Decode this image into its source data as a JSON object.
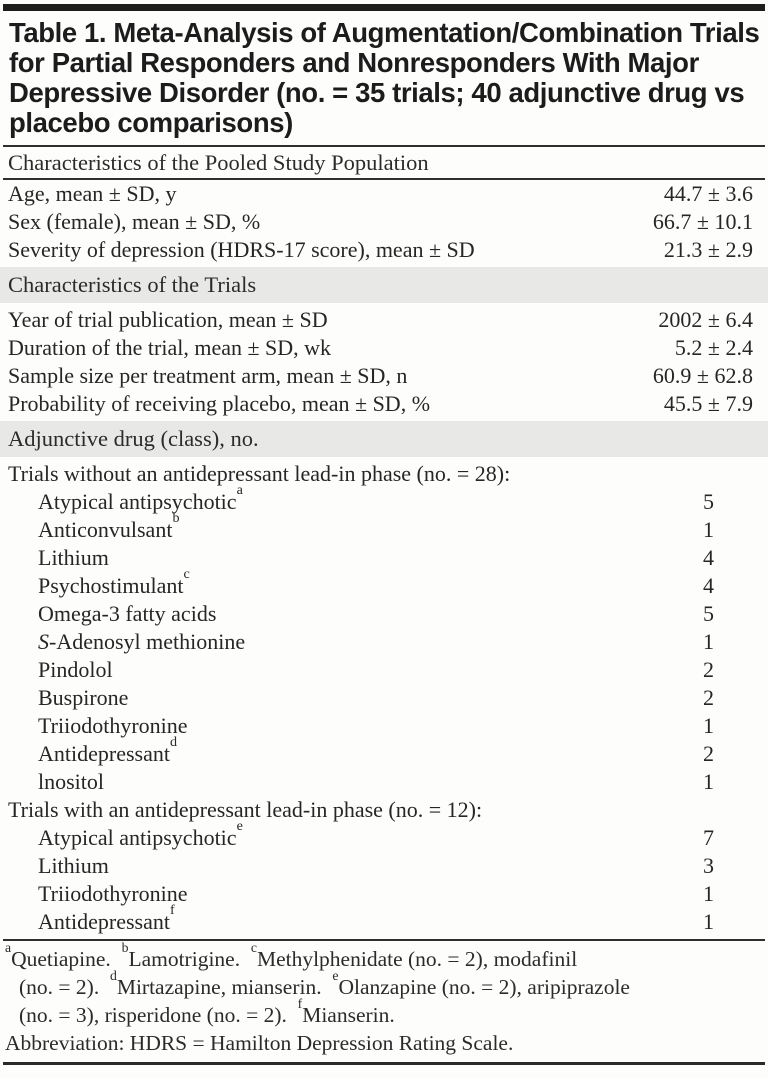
{
  "title": {
    "lines": [
      "Table 1. Meta-Analysis of Augmentation/Combination Trials",
      "for Partial Responders and Nonresponders With Major",
      "Depressive Disorder (no. = 35 trials; 40 adjunctive drug vs",
      "placebo comparisons)"
    ]
  },
  "colors": {
    "top_bar": "#1d1d1d",
    "section_band": "#e8e8e7",
    "rule": "#2f2f2f",
    "text": "#262626"
  },
  "table": {
    "sections": [
      {
        "header": "Characteristics of the Pooled Study Population",
        "shaded": false,
        "value_style": "stat",
        "rows": [
          {
            "label": "Age, mean ± SD, y",
            "value": "44.7 ± 3.6",
            "indent": 0
          },
          {
            "label": "Sex (female), mean ± SD, %",
            "value": "66.7 ± 10.1",
            "indent": 0
          },
          {
            "label": "Severity of depression (HDRS-17 score), mean ± SD",
            "value": "21.3 ± 2.9",
            "indent": 0
          }
        ]
      },
      {
        "header": "Characteristics of the Trials",
        "shaded": true,
        "value_style": "stat",
        "rows": [
          {
            "label": "Year of trial publication, mean ± SD",
            "value": "2002 ± 6.4",
            "indent": 0
          },
          {
            "label": "Duration of the trial, mean ± SD, wk",
            "value": "5.2 ± 2.4",
            "indent": 0
          },
          {
            "label": "Sample size per treatment arm, mean ± SD, n",
            "value": "60.9 ± 62.8",
            "indent": 0
          },
          {
            "label": "Probability of receiving placebo, mean ± SD, %",
            "value": "45.5 ± 7.9",
            "indent": 0
          }
        ]
      },
      {
        "header": "Adjunctive drug (class), no.",
        "shaded": true,
        "value_style": "count",
        "rows": [
          {
            "label": "Trials without an antidepressant lead-in phase (no. = 28):",
            "value": "",
            "indent": 0
          },
          {
            "label": "Atypical antipsychotic",
            "sup": "a",
            "value": "5",
            "indent": 1
          },
          {
            "label": "Anticonvulsant",
            "sup": "b",
            "value": "1",
            "indent": 1
          },
          {
            "label": "Lithium",
            "value": "4",
            "indent": 1
          },
          {
            "label": "Psychostimulant",
            "sup": "c",
            "value": "4",
            "indent": 1
          },
          {
            "label": "Omega-3 fatty acids",
            "value": "5",
            "indent": 1
          },
          {
            "italic_lead": "S",
            "label": "-Adenosyl methionine",
            "value": "1",
            "indent": 1
          },
          {
            "label": "Pindolol",
            "value": "2",
            "indent": 1
          },
          {
            "label": "Buspirone",
            "value": "2",
            "indent": 1
          },
          {
            "label": "Triiodothyronine",
            "value": "1",
            "indent": 1
          },
          {
            "label": "Antidepressant",
            "sup": "d",
            "value": "2",
            "indent": 1
          },
          {
            "label": "lnositol",
            "value": "1",
            "indent": 1
          },
          {
            "label": "Trials with an antidepressant lead-in phase (no. = 12):",
            "value": "",
            "indent": 0
          },
          {
            "label": "Atypical antipsychotic",
            "sup": "e",
            "value": "7",
            "indent": 1
          },
          {
            "label": "Lithium",
            "value": "3",
            "indent": 1
          },
          {
            "label": "Triiodothyronine",
            "value": "1",
            "indent": 1
          },
          {
            "label": "Antidepressant",
            "sup": "f",
            "value": "1",
            "indent": 1
          }
        ]
      }
    ]
  },
  "footnotes": {
    "lines": [
      {
        "hang": false,
        "segments": [
          {
            "sup": "a",
            "text": "Quetiapine.  "
          },
          {
            "sup": "b",
            "text": "Lamotrigine.  "
          },
          {
            "sup": "c",
            "text": "Methylphenidate (no. = 2), modafinil"
          }
        ]
      },
      {
        "hang": true,
        "segments": [
          {
            "text": "(no. = 2).  "
          },
          {
            "sup": "d",
            "text": "Mirtazapine, mianserin.  "
          },
          {
            "sup": "e",
            "text": "Olanzapine (no. = 2), aripiprazole"
          }
        ]
      },
      {
        "hang": true,
        "segments": [
          {
            "text": "(no. = 3), risperidone (no. = 2).  "
          },
          {
            "sup": "f",
            "text": "Mianserin."
          }
        ]
      },
      {
        "hang": false,
        "segments": [
          {
            "text": "Abbreviation: HDRS = Hamilton Depression Rating Scale."
          }
        ]
      }
    ]
  }
}
